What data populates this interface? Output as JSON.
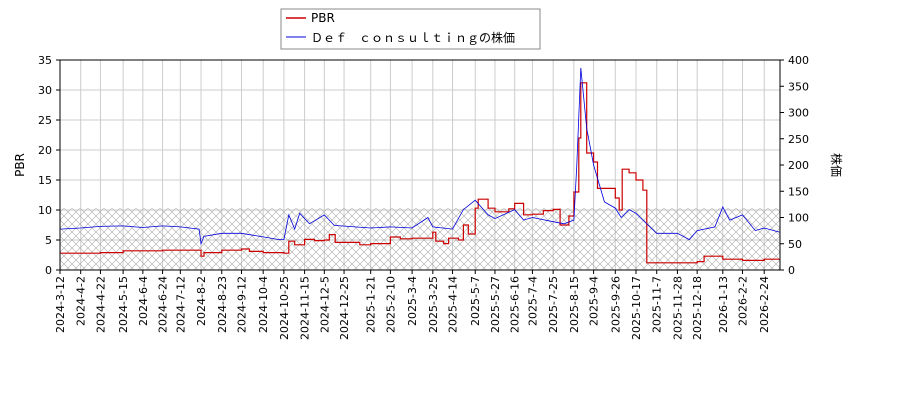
{
  "chart_data": {
    "type": "line",
    "legend": {
      "placement": "top-center",
      "entries": [
        "PBR",
        "Ｄｅｆ　ｃｏｎｓｕｌｔｉｎｇの株価"
      ]
    },
    "y_left": {
      "label": "PBR",
      "ylim": [
        0,
        35
      ],
      "ticks": [
        "0",
        "5",
        "10",
        "15",
        "20",
        "25",
        "30",
        "35"
      ]
    },
    "y_right": {
      "label": "株価",
      "ylim": [
        0,
        400
      ],
      "ticks": [
        "0",
        "50",
        "100",
        "150",
        "200",
        "250",
        "300",
        "350",
        "400"
      ]
    },
    "x_range": [
      "2024-03-12",
      "2026-03-12"
    ],
    "x_tick_labels": [
      "2024-3-12",
      "2024-4-2",
      "2024-4-22",
      "2024-5-15",
      "2024-6-4",
      "2024-6-24",
      "2024-7-12",
      "2024-8-2",
      "2024-8-23",
      "2024-9-12",
      "2024-10-4",
      "2024-10-25",
      "2024-11-15",
      "2024-12-5",
      "2024-12-25",
      "2025-1-21",
      "2025-2-10",
      "2025-3-4",
      "2025-3-25",
      "2025-4-14",
      "2025-5-7",
      "2025-5-27",
      "2025-6-16",
      "2025-7-4",
      "2025-7-25",
      "2025-8-15",
      "2025-9-4",
      "2025-9-26",
      "2025-10-17",
      "2025-11-7",
      "2025-11-28",
      "2025-12-18",
      "2026-1-13",
      "2026-2-2",
      "2026-2-24"
    ],
    "x_tick_dates": [
      "2024-03-12",
      "2024-04-02",
      "2024-04-22",
      "2024-05-15",
      "2024-06-04",
      "2024-06-24",
      "2024-07-12",
      "2024-08-02",
      "2024-08-23",
      "2024-09-12",
      "2024-10-04",
      "2024-10-25",
      "2024-11-15",
      "2024-12-05",
      "2024-12-25",
      "2025-01-21",
      "2025-02-10",
      "2025-03-04",
      "2025-03-25",
      "2025-04-14",
      "2025-05-07",
      "2025-05-27",
      "2025-06-16",
      "2025-07-04",
      "2025-07-25",
      "2025-08-15",
      "2025-09-04",
      "2025-09-26",
      "2025-10-17",
      "2025-11-07",
      "2025-11-28",
      "2025-12-18",
      "2026-01-13",
      "2026-02-02",
      "2026-02-24"
    ],
    "hatch_band": {
      "axis": "left",
      "from": 0,
      "to": 10.3
    },
    "grid": true,
    "colors": {
      "pbr": "#cc0000",
      "price": "#0000dd",
      "grid": "#cccccc",
      "hatch": "#aaaaaa"
    },
    "series": [
      {
        "name": "PBR",
        "axis": "left",
        "points": [
          [
            "2024-03-12",
            2.8
          ],
          [
            "2024-04-22",
            2.9
          ],
          [
            "2024-05-15",
            3.2
          ],
          [
            "2024-06-24",
            3.3
          ],
          [
            "2024-07-12",
            3.3
          ],
          [
            "2024-07-31",
            3.3
          ],
          [
            "2024-08-02",
            2.3
          ],
          [
            "2024-08-05",
            2.9
          ],
          [
            "2024-08-23",
            3.3
          ],
          [
            "2024-09-12",
            3.5
          ],
          [
            "2024-09-20",
            3.1
          ],
          [
            "2024-10-04",
            2.9
          ],
          [
            "2024-10-25",
            2.8
          ],
          [
            "2024-10-30",
            4.8
          ],
          [
            "2024-11-05",
            4.2
          ],
          [
            "2024-11-15",
            5.1
          ],
          [
            "2024-11-25",
            4.9
          ],
          [
            "2024-12-05",
            5.0
          ],
          [
            "2024-12-10",
            5.9
          ],
          [
            "2024-12-16",
            4.6
          ],
          [
            "2025-01-10",
            4.2
          ],
          [
            "2025-01-21",
            4.4
          ],
          [
            "2025-02-10",
            5.5
          ],
          [
            "2025-02-20",
            5.2
          ],
          [
            "2025-03-04",
            5.3
          ],
          [
            "2025-03-25",
            6.3
          ],
          [
            "2025-03-28",
            4.8
          ],
          [
            "2025-04-05",
            4.4
          ],
          [
            "2025-04-10",
            5.3
          ],
          [
            "2025-04-20",
            5.0
          ],
          [
            "2025-04-25",
            7.5
          ],
          [
            "2025-04-30",
            6.0
          ],
          [
            "2025-05-07",
            10.3
          ],
          [
            "2025-05-10",
            11.8
          ],
          [
            "2025-05-20",
            10.3
          ],
          [
            "2025-05-27",
            9.7
          ],
          [
            "2025-06-10",
            10.2
          ],
          [
            "2025-06-16",
            11.1
          ],
          [
            "2025-06-25",
            9.2
          ],
          [
            "2025-07-04",
            9.3
          ],
          [
            "2025-07-15",
            9.9
          ],
          [
            "2025-07-25",
            10.1
          ],
          [
            "2025-08-01",
            7.5
          ],
          [
            "2025-08-10",
            9.0
          ],
          [
            "2025-08-15",
            13.0
          ],
          [
            "2025-08-20",
            22.0
          ],
          [
            "2025-08-22",
            31.2
          ],
          [
            "2025-08-28",
            19.5
          ],
          [
            "2025-09-04",
            18.0
          ],
          [
            "2025-09-08",
            13.6
          ],
          [
            "2025-09-26",
            12.0
          ],
          [
            "2025-09-30",
            10.0
          ],
          [
            "2025-10-03",
            16.8
          ],
          [
            "2025-10-10",
            16.2
          ],
          [
            "2025-10-17",
            15.0
          ],
          [
            "2025-10-24",
            13.3
          ],
          [
            "2025-10-28",
            1.2
          ],
          [
            "2025-11-28",
            1.2
          ],
          [
            "2025-12-18",
            1.4
          ],
          [
            "2025-12-25",
            2.3
          ],
          [
            "2026-01-13",
            1.8
          ],
          [
            "2026-02-02",
            1.6
          ],
          [
            "2026-02-24",
            1.8
          ],
          [
            "2026-03-12",
            1.8
          ]
        ]
      },
      {
        "name": "Ｄｅｆ　ｃｏｎｓｕｌｔｉｎｇの株価",
        "axis": "right",
        "points": [
          [
            "2024-03-12",
            78
          ],
          [
            "2024-04-02",
            80
          ],
          [
            "2024-04-22",
            83
          ],
          [
            "2024-05-15",
            84
          ],
          [
            "2024-06-04",
            81
          ],
          [
            "2024-06-24",
            84
          ],
          [
            "2024-07-12",
            82
          ],
          [
            "2024-07-31",
            78
          ],
          [
            "2024-08-02",
            50
          ],
          [
            "2024-08-05",
            64
          ],
          [
            "2024-08-23",
            70
          ],
          [
            "2024-09-12",
            70
          ],
          [
            "2024-10-04",
            63
          ],
          [
            "2024-10-20",
            58
          ],
          [
            "2024-10-25",
            58
          ],
          [
            "2024-10-30",
            105
          ],
          [
            "2024-11-05",
            78
          ],
          [
            "2024-11-10",
            108
          ],
          [
            "2024-11-20",
            88
          ],
          [
            "2024-12-05",
            105
          ],
          [
            "2024-12-15",
            85
          ],
          [
            "2025-01-21",
            80
          ],
          [
            "2025-02-10",
            82
          ],
          [
            "2025-03-04",
            80
          ],
          [
            "2025-03-20",
            100
          ],
          [
            "2025-03-25",
            82
          ],
          [
            "2025-04-14",
            78
          ],
          [
            "2025-04-25",
            115
          ],
          [
            "2025-05-07",
            133
          ],
          [
            "2025-05-20",
            105
          ],
          [
            "2025-05-27",
            98
          ],
          [
            "2025-06-16",
            115
          ],
          [
            "2025-06-25",
            95
          ],
          [
            "2025-07-04",
            100
          ],
          [
            "2025-07-25",
            92
          ],
          [
            "2025-08-05",
            88
          ],
          [
            "2025-08-15",
            95
          ],
          [
            "2025-08-18",
            200
          ],
          [
            "2025-08-22",
            385
          ],
          [
            "2025-08-28",
            270
          ],
          [
            "2025-09-04",
            200
          ],
          [
            "2025-09-15",
            130
          ],
          [
            "2025-09-26",
            118
          ],
          [
            "2025-10-02",
            100
          ],
          [
            "2025-10-10",
            115
          ],
          [
            "2025-10-17",
            108
          ],
          [
            "2025-10-24",
            95
          ],
          [
            "2025-11-07",
            70
          ],
          [
            "2025-11-28",
            70
          ],
          [
            "2025-12-10",
            58
          ],
          [
            "2025-12-18",
            75
          ],
          [
            "2026-01-05",
            82
          ],
          [
            "2026-01-13",
            120
          ],
          [
            "2026-01-20",
            95
          ],
          [
            "2026-02-02",
            105
          ],
          [
            "2026-02-15",
            75
          ],
          [
            "2026-02-24",
            80
          ],
          [
            "2026-03-12",
            72
          ]
        ]
      }
    ]
  }
}
